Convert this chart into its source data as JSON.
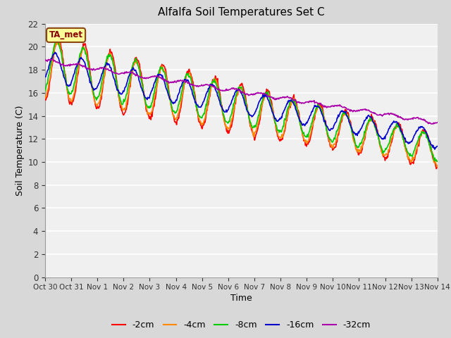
{
  "title": "Alfalfa Soil Temperatures Set C",
  "xlabel": "Time",
  "ylabel": "Soil Temperature (C)",
  "ylim": [
    0,
    22
  ],
  "yticks": [
    0,
    2,
    4,
    6,
    8,
    10,
    12,
    14,
    16,
    18,
    20,
    22
  ],
  "figure_bg_color": "#d8d8d8",
  "plot_bg_color": "#f0f0f0",
  "grid_color": "#ffffff",
  "annotation_text": "TA_met",
  "annotation_bg": "#ffff99",
  "annotation_border": "#8B4513",
  "annotation_text_color": "#8B0000",
  "series": {
    "-2cm": {
      "color": "#ff0000",
      "lw": 1.2
    },
    "-4cm": {
      "color": "#ff8800",
      "lw": 1.2
    },
    "-8cm": {
      "color": "#00cc00",
      "lw": 1.2
    },
    "-16cm": {
      "color": "#0000cc",
      "lw": 1.2
    },
    "-32cm": {
      "color": "#aa00aa",
      "lw": 1.2
    }
  },
  "x_tick_labels": [
    "Oct 30",
    "Oct 31",
    "Nov 1",
    "Nov 2",
    "Nov 3",
    "Nov 4",
    "Nov 5",
    "Nov 6",
    "Nov 7",
    "Nov 8",
    "Nov 9",
    "Nov 10",
    "Nov 11",
    "Nov 12",
    "Nov 13",
    "Nov 14"
  ],
  "n_days": 15,
  "points_per_day": 48
}
